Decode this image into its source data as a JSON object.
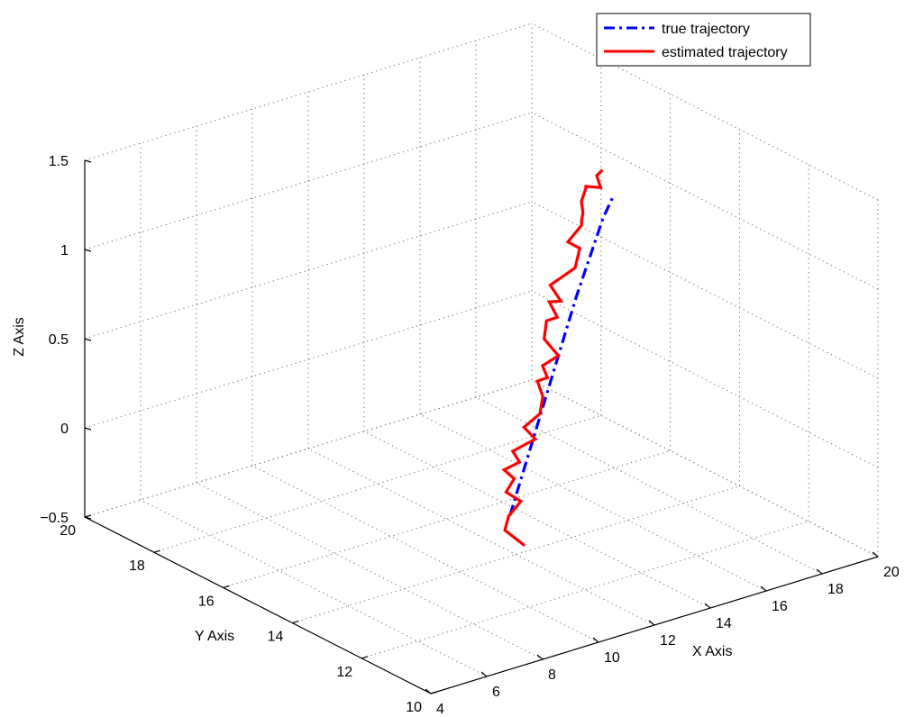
{
  "chart_data": {
    "type": "line3d",
    "xlabel": "X Axis",
    "ylabel": "Y Axis",
    "zlabel": "Z Axis",
    "xlim": [
      4,
      20
    ],
    "ylim": [
      10,
      20
    ],
    "zlim": [
      -0.5,
      1.5
    ],
    "x_ticks": [
      4,
      6,
      8,
      10,
      12,
      14,
      16,
      18,
      20
    ],
    "y_ticks": [
      10,
      12,
      14,
      16,
      18,
      20
    ],
    "z_ticks": [
      -0.5,
      0,
      0.5,
      1,
      1.5
    ],
    "x_tick_labels": [
      "4",
      "6",
      "8",
      "10",
      "12",
      "14",
      "16",
      "18",
      "20"
    ],
    "y_tick_labels": [
      "10",
      "12",
      "14",
      "16",
      "18",
      "20"
    ],
    "z_tick_labels": [
      "−0.5",
      "0",
      "0.5",
      "1",
      "1.5"
    ],
    "grid": true,
    "legend_position": "top-right",
    "series": [
      {
        "name": "true trajectory",
        "color": "#0000ff",
        "style": "dash-dot",
        "points": [
          [
            10.3,
            12.8,
            -0.08
          ],
          [
            11.65,
            13.25,
            0.22
          ],
          [
            13.0,
            13.7,
            0.52
          ],
          [
            14.35,
            14.15,
            0.82
          ],
          [
            15.8,
            14.55,
            1.15
          ],
          [
            16.2,
            14.6,
            1.24
          ]
        ]
      },
      {
        "name": "estimated trajectory",
        "color": "#ff0000",
        "style": "solid",
        "points": [
          [
            10.79,
            12.77,
            -0.27
          ],
          [
            10.08,
            12.77,
            -0.15
          ],
          [
            10.15,
            12.72,
            -0.07
          ],
          [
            10.69,
            12.8,
            -0.02
          ],
          [
            10.37,
            12.97,
            0.03
          ],
          [
            10.75,
            13.04,
            0.08
          ],
          [
            10.52,
            13.15,
            0.13
          ],
          [
            11.05,
            13.13,
            0.15
          ],
          [
            10.98,
            13.27,
            0.2
          ],
          [
            11.79,
            13.27,
            0.23
          ],
          [
            11.58,
            13.43,
            0.29
          ],
          [
            12.14,
            13.42,
            0.34
          ],
          [
            12.49,
            13.62,
            0.4
          ],
          [
            12.42,
            13.72,
            0.48
          ],
          [
            12.79,
            13.73,
            0.48
          ],
          [
            12.74,
            13.83,
            0.54
          ],
          [
            13.3,
            13.82,
            0.57
          ],
          [
            13.01,
            14.0,
            0.66
          ],
          [
            13.23,
            14.11,
            0.74
          ],
          [
            13.63,
            14.12,
            0.74
          ],
          [
            13.5,
            14.25,
            0.82
          ],
          [
            13.87,
            14.21,
            0.81
          ],
          [
            13.71,
            14.39,
            0.89
          ],
          [
            14.55,
            14.35,
            0.95
          ],
          [
            14.89,
            14.49,
            1.03
          ],
          [
            14.59,
            14.59,
            1.07
          ],
          [
            15.15,
            14.65,
            1.13
          ],
          [
            15.23,
            14.71,
            1.15
          ],
          [
            15.34,
            14.76,
            1.18
          ],
          [
            15.42,
            14.87,
            1.23
          ],
          [
            15.6,
            14.89,
            1.29
          ],
          [
            15.63,
            14.91,
            1.3
          ],
          [
            16.06,
            14.83,
            1.28
          ],
          [
            16.03,
            14.92,
            1.34
          ],
          [
            16.25,
            14.93,
            1.36
          ]
        ]
      }
    ]
  }
}
